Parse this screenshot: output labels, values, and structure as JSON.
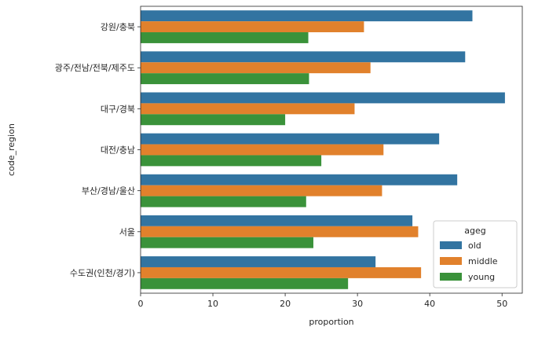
{
  "chart_data": {
    "type": "bar",
    "orientation": "horizontal",
    "title": "",
    "xlabel": "proportion",
    "ylabel": "code_region",
    "xlim": [
      0,
      52.8
    ],
    "xticks": [
      0,
      10,
      20,
      30,
      40,
      50
    ],
    "grid": false,
    "categories": [
      "강원/충북",
      "광주/전남/전북/제주도",
      "대구/경북",
      "대전/충남",
      "부산/경남/울산",
      "서울",
      "수도권(인천/경기)"
    ],
    "series": [
      {
        "name": "old",
        "color": "#3274a1",
        "values": [
          45.9,
          44.9,
          50.4,
          41.3,
          43.8,
          37.6,
          32.5
        ]
      },
      {
        "name": "middle",
        "color": "#e1812c",
        "values": [
          30.9,
          31.8,
          29.6,
          33.6,
          33.4,
          38.4,
          38.8
        ]
      },
      {
        "name": "young",
        "color": "#3a923a",
        "values": [
          23.2,
          23.3,
          20.0,
          25.0,
          22.9,
          23.9,
          28.7
        ]
      }
    ],
    "legend": {
      "title": "ageg",
      "position": "lower-right"
    }
  }
}
